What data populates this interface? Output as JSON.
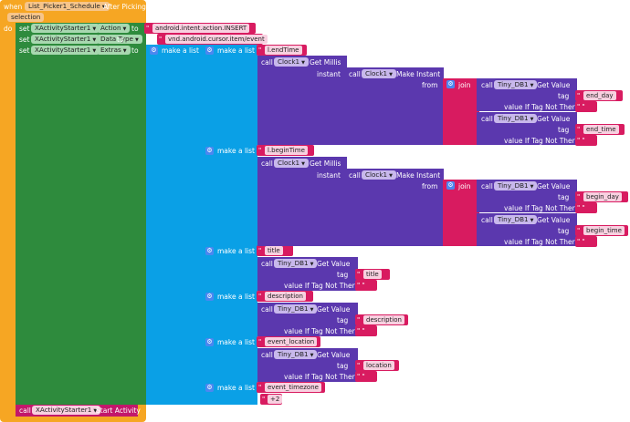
{
  "event": {
    "when_label": "when",
    "component": "List_Picker1_Schedule",
    "event_name": "After Picking",
    "do_label": "do",
    "param": "selection"
  },
  "set_blocks": [
    {
      "set_label": "set",
      "component": "XActivityStarter1",
      "property": "Action",
      "to_label": "to",
      "value": "android.intent.action.INSERT"
    },
    {
      "set_label": "set",
      "component": "XActivityStarter1",
      "property": "Data Type",
      "to_label": "to",
      "value": "vnd.android.cursor.item/event"
    },
    {
      "set_label": "set",
      "component": "XActivityStarter1",
      "property": "Extras",
      "to_label": "to"
    }
  ],
  "make_list_label": "make a list",
  "call_label": "call",
  "get_millis": "Get Millis",
  "make_instant": "Make Instant",
  "instant_label": "instant",
  "from_label": "from",
  "join_label": "join",
  "get_value": "Get Value",
  "tag_label": "tag",
  "vitnt_label": "value If Tag Not There",
  "clock": "Clock1",
  "tinydb": "Tiny_DB1",
  "items": [
    {
      "key": "l.endTime",
      "tags": [
        "end_day",
        "end_time"
      ]
    },
    {
      "key": "l.beginTime",
      "tags": [
        "begin_day",
        "begin_time"
      ]
    },
    {
      "key": "title",
      "tag": "title"
    },
    {
      "key": "description",
      "tag": "description"
    },
    {
      "key": "event_location",
      "tag": "location"
    },
    {
      "key": "event_timezone",
      "value": "+2"
    }
  ],
  "final_call": {
    "call_label": "call",
    "component": "XActivityStarter1",
    "method": "Start Activity"
  }
}
